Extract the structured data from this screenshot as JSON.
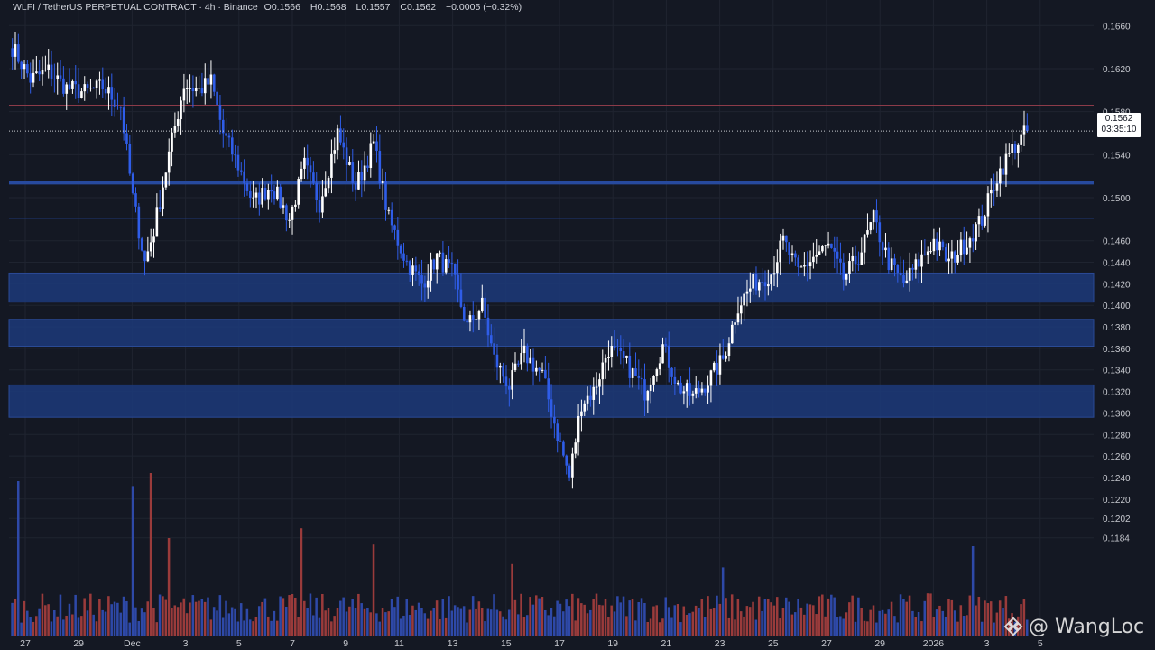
{
  "header": {
    "symbol": "WLFI / TetherUS PERPETUAL CONTRACT · 4h · Binance",
    "open_label": "O",
    "open": "0.1566",
    "high_label": "H",
    "high": "0.1568",
    "low_label": "L",
    "low": "0.1557",
    "close_label": "C",
    "close": "0.1562",
    "change": "−0.0005 (−0.32%)"
  },
  "price_label": {
    "price": "0.1562",
    "countdown": "03:35:10"
  },
  "watermark": {
    "text": "@ WangLoc",
    "icon": "binance-diamond-icon"
  },
  "colors": {
    "background": "#141823",
    "up": "#ffffff",
    "down": "#2f5de8",
    "vol_up": "#9a3b3b",
    "vol_down": "#2e49a8",
    "zone": "#1c3a7a",
    "resistance_line": "#8c3b49"
  },
  "chart_data": {
    "type": "candlestick",
    "ylim": [
      0.1172,
      0.1672
    ],
    "y_ticks": [
      "0.1660",
      "0.1620",
      "0.1580",
      "0.1540",
      "0.1500",
      "0.1460",
      "0.1440",
      "0.1420",
      "0.1400",
      "0.1380",
      "0.1360",
      "0.1340",
      "0.1320",
      "0.1300",
      "0.1280",
      "0.1260",
      "0.1240",
      "0.1220",
      "0.1202",
      "0.1184"
    ],
    "x_ticks": [
      "27",
      "29",
      "Dec",
      "3",
      "5",
      "7",
      "9",
      "11",
      "13",
      "15",
      "17",
      "19",
      "21",
      "23",
      "25",
      "27",
      "29",
      "2026",
      "3",
      "5"
    ],
    "zones": [
      {
        "from": 0.1403,
        "to": 0.143
      },
      {
        "from": 0.1362,
        "to": 0.1387
      },
      {
        "from": 0.1296,
        "to": 0.1326
      }
    ],
    "lines": [
      {
        "value": 0.1514,
        "style": "thick"
      },
      {
        "value": 0.1481,
        "style": "thin"
      },
      {
        "value": 0.1586,
        "style": "resistance"
      }
    ],
    "last_price": 0.1562,
    "anchors": [
      [
        0,
        0.164
      ],
      [
        6,
        0.161
      ],
      [
        12,
        0.1618
      ],
      [
        18,
        0.1602
      ],
      [
        24,
        0.1598
      ],
      [
        30,
        0.1603
      ],
      [
        36,
        0.1585
      ],
      [
        40,
        0.15
      ],
      [
        44,
        0.144
      ],
      [
        47,
        0.147
      ],
      [
        52,
        0.154
      ],
      [
        57,
        0.1605
      ],
      [
        62,
        0.16
      ],
      [
        66,
        0.1608
      ],
      [
        70,
        0.156
      ],
      [
        75,
        0.153
      ],
      [
        80,
        0.1495
      ],
      [
        86,
        0.1512
      ],
      [
        92,
        0.148
      ],
      [
        97,
        0.153
      ],
      [
        102,
        0.1495
      ],
      [
        108,
        0.156
      ],
      [
        114,
        0.151
      ],
      [
        120,
        0.155
      ],
      [
        125,
        0.148
      ],
      [
        131,
        0.144
      ],
      [
        136,
        0.142
      ],
      [
        141,
        0.1445
      ],
      [
        146,
        0.143
      ],
      [
        151,
        0.138
      ],
      [
        156,
        0.14
      ],
      [
        160,
        0.135
      ],
      [
        165,
        0.1325
      ],
      [
        170,
        0.1355
      ],
      [
        176,
        0.1335
      ],
      [
        181,
        0.128
      ],
      [
        185,
        0.124
      ],
      [
        189,
        0.131
      ],
      [
        193,
        0.132
      ],
      [
        198,
        0.136
      ],
      [
        204,
        0.1345
      ],
      [
        210,
        0.132
      ],
      [
        216,
        0.1362
      ],
      [
        221,
        0.1325
      ],
      [
        226,
        0.1315
      ],
      [
        231,
        0.133
      ],
      [
        236,
        0.135
      ],
      [
        241,
        0.14
      ],
      [
        246,
        0.142
      ],
      [
        252,
        0.143
      ],
      [
        256,
        0.146
      ],
      [
        261,
        0.143
      ],
      [
        266,
        0.1445
      ],
      [
        271,
        0.1455
      ],
      [
        276,
        0.1425
      ],
      [
        281,
        0.1445
      ],
      [
        286,
        0.148
      ],
      [
        291,
        0.144
      ],
      [
        296,
        0.142
      ],
      [
        301,
        0.144
      ],
      [
        306,
        0.146
      ],
      [
        311,
        0.144
      ],
      [
        317,
        0.146
      ],
      [
        322,
        0.148
      ],
      [
        327,
        0.152
      ],
      [
        332,
        0.1545
      ],
      [
        337,
        0.1562
      ]
    ],
    "volume": {
      "max": 1,
      "spikes": [
        [
          2,
          0.95
        ],
        [
          40,
          0.92
        ],
        [
          46,
          1.0
        ],
        [
          52,
          0.6
        ],
        [
          96,
          0.66
        ],
        [
          120,
          0.56
        ],
        [
          166,
          0.44
        ],
        [
          236,
          0.42
        ],
        [
          319,
          0.55
        ]
      ]
    }
  }
}
